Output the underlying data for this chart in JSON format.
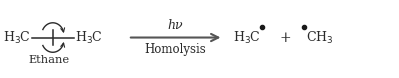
{
  "bg_color": "#ffffff",
  "text_color": "#2a2a2a",
  "figsize": [
    3.99,
    0.78
  ],
  "dpi": 100,
  "ethane_label": "Ethane",
  "arrow_top": "hν",
  "arrow_bottom": "Homolysis",
  "dot_color": "#1a1a1a"
}
